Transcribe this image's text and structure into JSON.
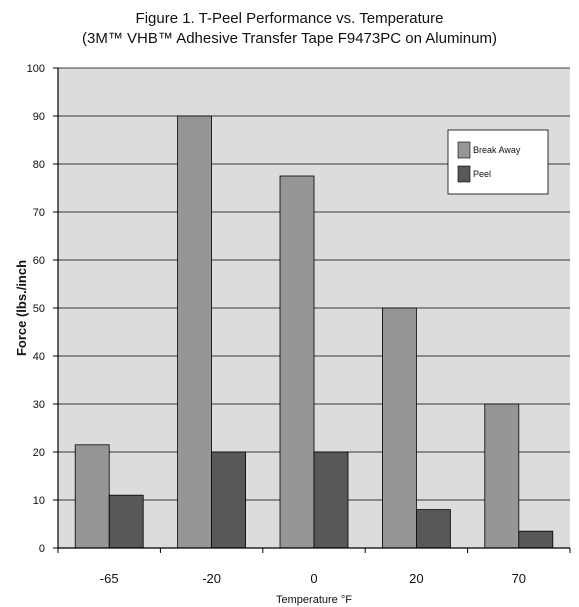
{
  "chart_data": {
    "type": "bar",
    "title": "Figure 1. T-Peel Performance vs. Temperature",
    "subtitle": "(3M™ VHB™ Adhesive Transfer Tape F9473PC on Aluminum)",
    "xlabel": "Temperature °F",
    "ylabel": "Force (lbs./inch",
    "categories": [
      "-65",
      "-20",
      "0",
      "20",
      "70"
    ],
    "series": [
      {
        "name": "Break Away",
        "values": [
          21.5,
          90,
          77.5,
          50,
          30
        ],
        "color": "#969699"
      },
      {
        "name": "Peel",
        "values": [
          11,
          20,
          20,
          8,
          3.5
        ],
        "color": "#58585a"
      }
    ],
    "ylim": [
      0,
      100
    ],
    "yticks": [
      0,
      10,
      20,
      30,
      40,
      50,
      60,
      70,
      80,
      90,
      100
    ],
    "grid": true,
    "legend": "top-right",
    "plot_background": "#dcdcdc"
  }
}
